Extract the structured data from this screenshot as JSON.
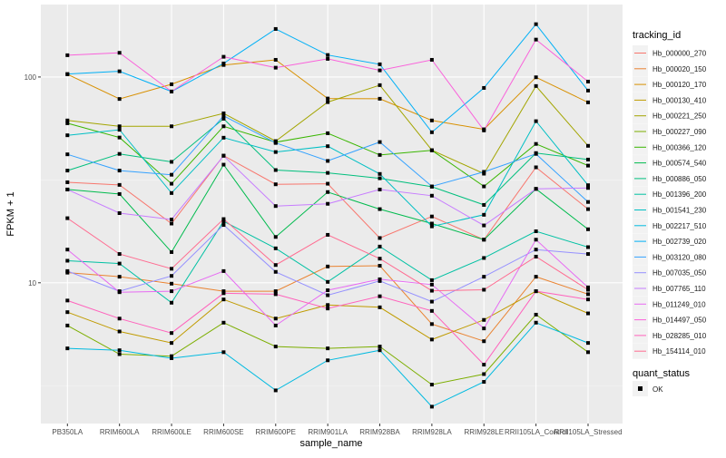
{
  "chart_data": {
    "type": "line",
    "title": "",
    "xlabel": "sample_name",
    "ylabel": "FPKM + 1",
    "y_scale": "log10",
    "ylim": [
      2.07,
      225
    ],
    "y_ticks": [
      10,
      100
    ],
    "y_tick_labels": [
      "10",
      "100"
    ],
    "grid": true,
    "legend_position": "right",
    "categories": [
      "PB350LA",
      "RRIM600LA",
      "RRIM600LE",
      "RRIM600SE",
      "RRIM600PE",
      "RRIM901LA",
      "RRIM928BA",
      "RRIM928LA",
      "RRIM928LE",
      "RRII105LA_Control",
      "RRII105LA_Stressed"
    ],
    "legend": {
      "title": "tracking_id",
      "shape_title": "quant_status",
      "shape_entries": [
        "OK"
      ]
    },
    "series": [
      {
        "name": "Hb_000000_270",
        "color": "#F8766D",
        "values": [
          30.8,
          29.9,
          19.4,
          41.5,
          30.1,
          30.3,
          16.5,
          21.0,
          16.2,
          36.4,
          22.8
        ]
      },
      {
        "name": "Hb_000020_150",
        "color": "#EA8331",
        "values": [
          11.2,
          10.7,
          9.9,
          9.1,
          9.1,
          12.0,
          12.1,
          6.3,
          5.2,
          10.7,
          8.8
        ]
      },
      {
        "name": "Hb_000120_170",
        "color": "#D89000",
        "values": [
          103.1,
          78.2,
          92.2,
          114.4,
          121.2,
          78.6,
          78.4,
          61.5,
          55.7,
          99.7,
          75.3
        ]
      },
      {
        "name": "Hb_000130_410",
        "color": "#C09B00",
        "values": [
          7.2,
          5.8,
          5.1,
          8.3,
          6.7,
          7.8,
          7.6,
          5.3,
          6.6,
          9.1,
          7.1
        ]
      },
      {
        "name": "Hb_000221_250",
        "color": "#A3A500",
        "values": [
          61.5,
          57.6,
          57.6,
          66.6,
          48.8,
          75.5,
          91.3,
          44.1,
          33.9,
          90.4,
          46.3
        ]
      },
      {
        "name": "Hb_000227_090",
        "color": "#7CAE00",
        "values": [
          6.2,
          4.5,
          4.4,
          6.4,
          4.9,
          4.8,
          4.9,
          3.2,
          3.6,
          7.0,
          4.6
        ]
      },
      {
        "name": "Hb_000366_120",
        "color": "#39B600",
        "values": [
          59.6,
          50.8,
          30.3,
          57.6,
          48.2,
          53.3,
          41.8,
          44.0,
          29.4,
          47.3,
          37.1
        ]
      },
      {
        "name": "Hb_000574_540",
        "color": "#00BB4E",
        "values": [
          28.4,
          27.0,
          14.1,
          37.5,
          16.7,
          27.6,
          22.8,
          19.4,
          16.2,
          28.6,
          18.2
        ]
      },
      {
        "name": "Hb_000886_050",
        "color": "#00BF7D",
        "values": [
          35.1,
          42.3,
          38.7,
          62.7,
          35.3,
          34.2,
          32.2,
          29.3,
          23.9,
          42.7,
          39.7
        ]
      },
      {
        "name": "Hb_001396_200",
        "color": "#00C1A3",
        "values": [
          12.8,
          12.4,
          8.0,
          19.9,
          14.7,
          10.1,
          15.0,
          10.3,
          13.2,
          17.8,
          14.9
        ]
      },
      {
        "name": "Hb_001541_230",
        "color": "#00BFC4",
        "values": [
          52.1,
          55.4,
          27.3,
          50.7,
          43.2,
          46.1,
          33.8,
          18.8,
          21.4,
          61.0,
          29.8
        ]
      },
      {
        "name": "Hb_002217_510",
        "color": "#00BAE0",
        "values": [
          4.8,
          4.7,
          4.3,
          4.6,
          3.0,
          4.2,
          4.7,
          2.5,
          3.3,
          6.4,
          5.1
        ]
      },
      {
        "name": "Hb_002739_020",
        "color": "#00B0F6",
        "values": [
          103.4,
          106.6,
          85.0,
          116.4,
          171.2,
          127.9,
          115.3,
          53.9,
          88.5,
          180.6,
          85.9
        ]
      },
      {
        "name": "Hb_003120_080",
        "color": "#35A2FF",
        "values": [
          42.1,
          35.1,
          33.5,
          64.8,
          47.8,
          39.1,
          48.3,
          29.4,
          34.6,
          42.3,
          24.7
        ]
      },
      {
        "name": "Hb_007035_050",
        "color": "#9590FF",
        "values": [
          11.4,
          9.1,
          10.8,
          19.1,
          11.3,
          8.7,
          10.2,
          8.1,
          10.7,
          14.5,
          13.8
        ]
      },
      {
        "name": "Hb_007765_110",
        "color": "#C77CFF",
        "values": [
          28.4,
          21.8,
          20.3,
          41.4,
          23.6,
          24.2,
          28.4,
          26.5,
          19.0,
          28.6,
          28.9
        ]
      },
      {
        "name": "Hb_011249_010",
        "color": "#E76BF3",
        "values": [
          14.5,
          9.0,
          9.1,
          11.4,
          6.2,
          9.2,
          10.4,
          9.8,
          6.0,
          16.2,
          9.5
        ]
      },
      {
        "name": "Hb_014497_050",
        "color": "#FA62DB",
        "values": [
          127.6,
          131.1,
          85.0,
          125.4,
          111.0,
          122.5,
          107.7,
          121.2,
          55.0,
          152.0,
          95.0
        ]
      },
      {
        "name": "Hb_028285_010",
        "color": "#FF62BC",
        "values": [
          8.2,
          6.7,
          5.7,
          8.9,
          8.8,
          7.5,
          8.6,
          7.3,
          4.0,
          9.1,
          8.3
        ]
      },
      {
        "name": "Hb_154114_010",
        "color": "#FF6C91",
        "values": [
          20.6,
          13.8,
          11.7,
          20.4,
          12.2,
          17.1,
          13.1,
          9.15,
          9.25,
          13.4,
          9.25
        ]
      }
    ]
  },
  "colors": {
    "panel_bg": "#EBEBEB",
    "grid": "#FFFFFF",
    "point": "#000000"
  }
}
